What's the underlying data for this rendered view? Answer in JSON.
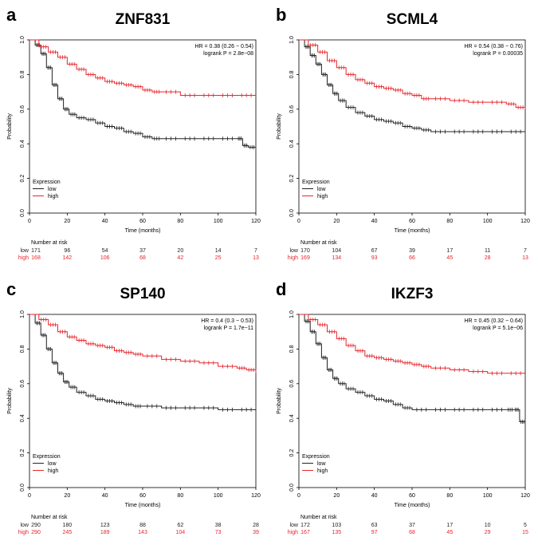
{
  "figure": {
    "colors": {
      "low": "#222222",
      "high": "#e8262c",
      "axis": "#000000"
    },
    "panels_order": [
      "a",
      "b",
      "c",
      "d"
    ]
  },
  "chart_data": [
    {
      "type": "line",
      "panel_letter": "a",
      "title": "ZNF831",
      "xlabel": "Time (months)",
      "ylabel": "Probability",
      "xlim": [
        0,
        120
      ],
      "ylim": [
        0,
        1
      ],
      "xticks": [
        "0",
        "20",
        "40",
        "60",
        "80",
        "100",
        "120"
      ],
      "yticks": [
        "0.0",
        "0.2",
        "0.4",
        "0.6",
        "0.8",
        "1.0"
      ],
      "stats": {
        "hr": "HR = 0.38 (0.26 − 0.54)",
        "logrank": "logrank P = 2.8e−08"
      },
      "legend": {
        "title": "Expression",
        "entries": [
          "low",
          "high"
        ],
        "position": "bottom-left"
      },
      "series": [
        {
          "name": "low",
          "x": [
            0,
            3,
            6,
            9,
            12,
            15,
            18,
            21,
            25,
            30,
            35,
            40,
            45,
            50,
            55,
            60,
            65,
            70,
            80,
            90,
            100,
            110,
            113,
            116,
            120
          ],
          "values": [
            1.0,
            0.97,
            0.92,
            0.84,
            0.74,
            0.66,
            0.6,
            0.57,
            0.55,
            0.54,
            0.52,
            0.5,
            0.49,
            0.47,
            0.46,
            0.44,
            0.43,
            0.43,
            0.43,
            0.43,
            0.43,
            0.43,
            0.39,
            0.38,
            0.38
          ]
        },
        {
          "name": "high",
          "x": [
            0,
            5,
            10,
            15,
            20,
            25,
            30,
            35,
            40,
            45,
            50,
            55,
            60,
            65,
            70,
            80,
            90,
            100,
            110,
            120
          ],
          "values": [
            1.0,
            0.96,
            0.93,
            0.9,
            0.86,
            0.83,
            0.8,
            0.78,
            0.76,
            0.75,
            0.74,
            0.73,
            0.71,
            0.7,
            0.7,
            0.68,
            0.68,
            0.68,
            0.68,
            0.68
          ]
        }
      ],
      "risk_table": {
        "header": "Number at risk",
        "rows": [
          {
            "label": "low",
            "counts": [
              "171",
              "96",
              "54",
              "37",
              "20",
              "14",
              "7"
            ]
          },
          {
            "label": "high",
            "counts": [
              "168",
              "142",
              "106",
              "68",
              "42",
              "25",
              "13"
            ]
          }
        ]
      }
    },
    {
      "type": "line",
      "panel_letter": "b",
      "title": "SCML4",
      "xlabel": "Time (months)",
      "ylabel": "Probability",
      "xlim": [
        0,
        120
      ],
      "ylim": [
        0,
        1
      ],
      "xticks": [
        "0",
        "20",
        "40",
        "60",
        "80",
        "100",
        "120"
      ],
      "yticks": [
        "0.0",
        "0.2",
        "0.4",
        "0.6",
        "0.8",
        "1.0"
      ],
      "stats": {
        "hr": "HR = 0.54 (0.38 − 0.76)",
        "logrank": "logrank P = 0.00035"
      },
      "legend": {
        "title": "Expression",
        "entries": [
          "low",
          "high"
        ],
        "position": "bottom-left"
      },
      "series": [
        {
          "name": "low",
          "x": [
            0,
            3,
            6,
            9,
            12,
            15,
            18,
            21,
            25,
            30,
            35,
            40,
            45,
            50,
            55,
            60,
            65,
            70,
            80,
            90,
            100,
            110,
            120
          ],
          "values": [
            1.0,
            0.96,
            0.91,
            0.86,
            0.8,
            0.74,
            0.69,
            0.65,
            0.61,
            0.58,
            0.56,
            0.54,
            0.53,
            0.52,
            0.5,
            0.49,
            0.48,
            0.47,
            0.47,
            0.47,
            0.47,
            0.47,
            0.47
          ]
        },
        {
          "name": "high",
          "x": [
            0,
            5,
            10,
            15,
            20,
            25,
            30,
            35,
            40,
            45,
            50,
            55,
            60,
            65,
            70,
            80,
            90,
            100,
            110,
            115,
            120
          ],
          "values": [
            1.0,
            0.97,
            0.93,
            0.88,
            0.84,
            0.8,
            0.77,
            0.75,
            0.73,
            0.72,
            0.71,
            0.69,
            0.68,
            0.66,
            0.66,
            0.65,
            0.64,
            0.64,
            0.63,
            0.61,
            0.6
          ]
        }
      ],
      "risk_table": {
        "header": "Number at risk",
        "rows": [
          {
            "label": "low",
            "counts": [
              "170",
              "104",
              "67",
              "39",
              "17",
              "11",
              "7"
            ]
          },
          {
            "label": "high",
            "counts": [
              "169",
              "134",
              "93",
              "66",
              "45",
              "28",
              "13"
            ]
          }
        ]
      }
    },
    {
      "type": "line",
      "panel_letter": "c",
      "title": "SP140",
      "xlabel": "Time (months)",
      "ylabel": "Probability",
      "xlim": [
        0,
        120
      ],
      "ylim": [
        0,
        1
      ],
      "xticks": [
        "0",
        "20",
        "40",
        "60",
        "80",
        "100",
        "120"
      ],
      "yticks": [
        "0.0",
        "0.2",
        "0.4",
        "0.6",
        "0.8",
        "1.0"
      ],
      "stats": {
        "hr": "HR = 0.4 (0.3 − 0.53)",
        "logrank": "logrank P = 1.7e−11"
      },
      "legend": {
        "title": "Expression",
        "entries": [
          "low",
          "high"
        ],
        "position": "bottom-left"
      },
      "series": [
        {
          "name": "low",
          "x": [
            0,
            3,
            6,
            9,
            12,
            15,
            18,
            21,
            25,
            30,
            35,
            40,
            45,
            50,
            55,
            60,
            70,
            80,
            90,
            100,
            110,
            120
          ],
          "values": [
            1.0,
            0.95,
            0.88,
            0.8,
            0.72,
            0.66,
            0.61,
            0.58,
            0.55,
            0.53,
            0.51,
            0.5,
            0.49,
            0.48,
            0.47,
            0.47,
            0.46,
            0.46,
            0.46,
            0.45,
            0.45,
            0.44
          ]
        },
        {
          "name": "high",
          "x": [
            0,
            5,
            10,
            15,
            20,
            25,
            30,
            35,
            40,
            45,
            50,
            55,
            60,
            70,
            80,
            90,
            100,
            110,
            115,
            120
          ],
          "values": [
            1.0,
            0.97,
            0.94,
            0.9,
            0.87,
            0.85,
            0.83,
            0.82,
            0.81,
            0.79,
            0.78,
            0.77,
            0.76,
            0.74,
            0.73,
            0.72,
            0.7,
            0.69,
            0.68,
            0.66
          ]
        }
      ],
      "risk_table": {
        "header": "Number at risk",
        "rows": [
          {
            "label": "low",
            "counts": [
              "290",
              "180",
              "123",
              "88",
              "62",
              "38",
              "28"
            ]
          },
          {
            "label": "high",
            "counts": [
              "290",
              "245",
              "189",
              "143",
              "104",
              "73",
              "39"
            ]
          }
        ]
      }
    },
    {
      "type": "line",
      "panel_letter": "d",
      "title": "IKZF3",
      "xlabel": "Time (months)",
      "ylabel": "Probability",
      "xlim": [
        0,
        120
      ],
      "ylim": [
        0,
        1
      ],
      "xticks": [
        "0",
        "20",
        "40",
        "60",
        "80",
        "100",
        "120"
      ],
      "yticks": [
        "0.0",
        "0.2",
        "0.4",
        "0.6",
        "0.8",
        "1.0"
      ],
      "stats": {
        "hr": "HR = 0.45 (0.32 − 0.64)",
        "logrank": "logrank P = 5.1e−06"
      },
      "legend": {
        "title": "Expression",
        "entries": [
          "low",
          "high"
        ],
        "position": "bottom-left"
      },
      "series": [
        {
          "name": "low",
          "x": [
            0,
            3,
            6,
            9,
            12,
            15,
            18,
            21,
            25,
            30,
            35,
            40,
            45,
            50,
            55,
            60,
            70,
            80,
            90,
            100,
            110,
            114,
            117,
            120
          ],
          "values": [
            1.0,
            0.96,
            0.9,
            0.83,
            0.75,
            0.68,
            0.63,
            0.6,
            0.57,
            0.55,
            0.53,
            0.51,
            0.5,
            0.48,
            0.46,
            0.45,
            0.45,
            0.45,
            0.45,
            0.45,
            0.45,
            0.45,
            0.38,
            0.38
          ]
        },
        {
          "name": "high",
          "x": [
            0,
            5,
            10,
            15,
            20,
            25,
            30,
            35,
            40,
            45,
            50,
            55,
            60,
            65,
            70,
            80,
            90,
            100,
            110,
            120
          ],
          "values": [
            1.0,
            0.97,
            0.94,
            0.9,
            0.86,
            0.82,
            0.79,
            0.76,
            0.75,
            0.74,
            0.73,
            0.72,
            0.71,
            0.7,
            0.69,
            0.68,
            0.67,
            0.66,
            0.66,
            0.66
          ]
        }
      ],
      "risk_table": {
        "header": "Number at risk",
        "rows": [
          {
            "label": "low",
            "counts": [
              "172",
              "103",
              "63",
              "37",
              "17",
              "10",
              "5"
            ]
          },
          {
            "label": "high",
            "counts": [
              "167",
              "135",
              "97",
              "68",
              "45",
              "29",
              "15"
            ]
          }
        ]
      }
    }
  ]
}
